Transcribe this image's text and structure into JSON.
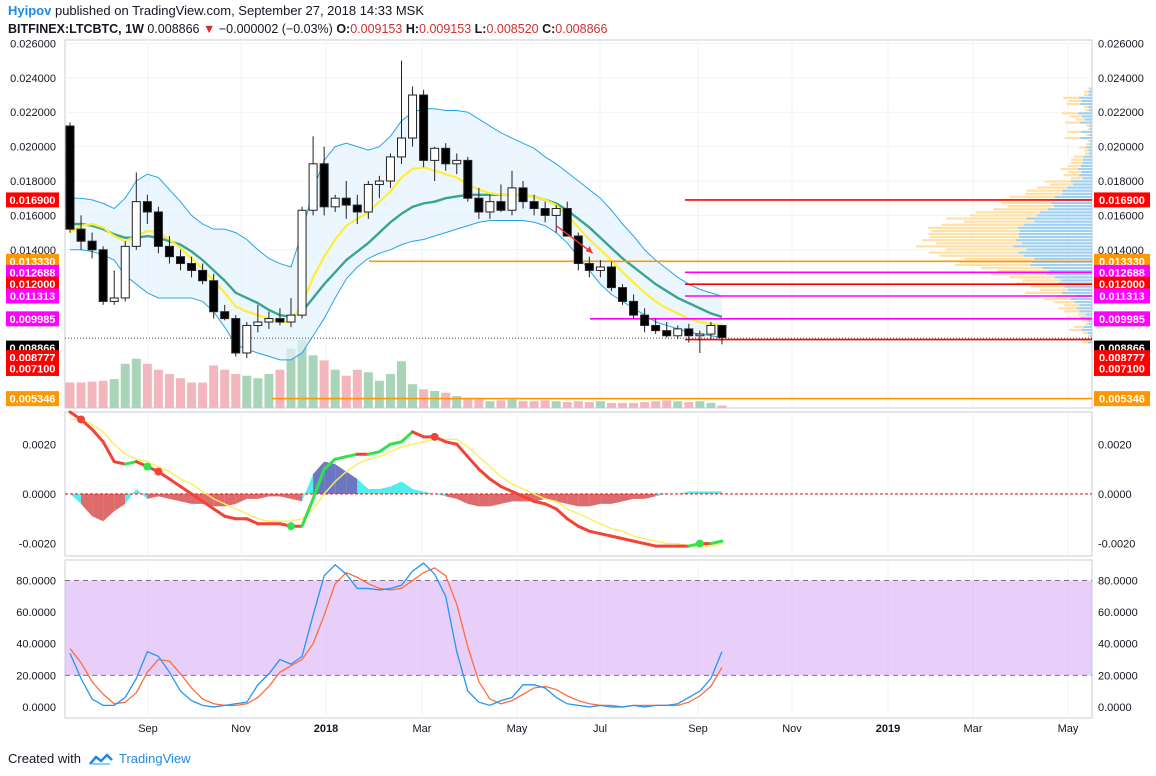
{
  "header": {
    "publisher": "Hyipov",
    "published_text": "published on TradingView.com, September 27, 2018 14:33 MSK",
    "symbol": "BITFINEX:LTCBTC, 1W",
    "last": "0.008866",
    "change": "−0.000002 (−0.03%)",
    "o_label": "O:",
    "o_value": "0.009153",
    "h_label": "H:",
    "h_value": "0.009153",
    "l_label": "L:",
    "l_value": "0.008520",
    "c_label": "C:",
    "c_value": "0.008866"
  },
  "footer": {
    "created_with": "Created with",
    "brand": "TradingView"
  },
  "colors": {
    "bull": "#ffffff",
    "bear": "#000000",
    "bb_band": "#29a3e6",
    "bb_fill": "#e3f2fd",
    "ma_fast": "#ffee33",
    "ma_slow": "#3aa58e",
    "vol_up": "#a8d5b8",
    "vol_down": "#f4b6bd",
    "macd_line": "#f44336",
    "macd_signal": "#ffee58",
    "stoch_k": "#2196f3",
    "stoch_d": "#ff6d3a",
    "rsi_band": "#e1bee7",
    "level_red": "#ff0000",
    "level_orange": "#ff9800",
    "level_magenta": "#ff00ff"
  },
  "chart_data": [
    {
      "type": "candlestick",
      "x_tick_labels": [
        "Sep",
        "Nov",
        "2018",
        "Mar",
        "May",
        "Jul",
        "Sep",
        "Nov",
        "2019",
        "Mar",
        "May"
      ],
      "y_tick_labels": [
        "0.026000",
        "0.024000",
        "0.022000",
        "0.020000",
        "0.018000",
        "0.016000",
        "0.014000"
      ],
      "ylim": [
        0.0048,
        0.0262
      ],
      "ohlc": [
        [
          0.0212,
          0.0214,
          0.015,
          0.0152
        ],
        [
          0.0152,
          0.016,
          0.014,
          0.0145
        ],
        [
          0.0145,
          0.015,
          0.0135,
          0.014
        ],
        [
          0.014,
          0.0142,
          0.0108,
          0.011
        ],
        [
          0.011,
          0.0128,
          0.0108,
          0.0112
        ],
        [
          0.0112,
          0.0145,
          0.011,
          0.0142
        ],
        [
          0.0142,
          0.0185,
          0.014,
          0.0168
        ],
        [
          0.0168,
          0.0172,
          0.0155,
          0.0162
        ],
        [
          0.0162,
          0.0165,
          0.0138,
          0.0142
        ],
        [
          0.0142,
          0.0148,
          0.0132,
          0.0136
        ],
        [
          0.0136,
          0.014,
          0.0128,
          0.0132
        ],
        [
          0.0132,
          0.0136,
          0.0124,
          0.0128
        ],
        [
          0.0128,
          0.0132,
          0.012,
          0.0122
        ],
        [
          0.0122,
          0.0126,
          0.01,
          0.0104
        ],
        [
          0.0104,
          0.0108,
          0.0099,
          0.01
        ],
        [
          0.01,
          0.0102,
          0.0078,
          0.008
        ],
        [
          0.008,
          0.0098,
          0.0077,
          0.0096
        ],
        [
          0.0096,
          0.0108,
          0.0092,
          0.0098
        ],
        [
          0.0098,
          0.0104,
          0.0094,
          0.01
        ],
        [
          0.01,
          0.0106,
          0.0096,
          0.0098
        ],
        [
          0.0098,
          0.0112,
          0.0095,
          0.0102
        ],
        [
          0.0102,
          0.0165,
          0.01,
          0.0163
        ],
        [
          0.0163,
          0.0206,
          0.016,
          0.019
        ],
        [
          0.019,
          0.02,
          0.016,
          0.0165
        ],
        [
          0.0165,
          0.0172,
          0.0162,
          0.017
        ],
        [
          0.017,
          0.018,
          0.0158,
          0.0166
        ],
        [
          0.0166,
          0.0172,
          0.0155,
          0.0162
        ],
        [
          0.0162,
          0.018,
          0.0158,
          0.0178
        ],
        [
          0.0178,
          0.0183,
          0.017,
          0.018
        ],
        [
          0.018,
          0.0196,
          0.0176,
          0.0194
        ],
        [
          0.0194,
          0.025,
          0.019,
          0.0205
        ],
        [
          0.0205,
          0.0235,
          0.02,
          0.023
        ],
        [
          0.023,
          0.0233,
          0.0188,
          0.0192
        ],
        [
          0.0192,
          0.02,
          0.018,
          0.0199
        ],
        [
          0.0199,
          0.0202,
          0.0186,
          0.019
        ],
        [
          0.019,
          0.0196,
          0.0184,
          0.0192
        ],
        [
          0.0192,
          0.0194,
          0.0168,
          0.017
        ],
        [
          0.017,
          0.0176,
          0.0158,
          0.0162
        ],
        [
          0.0162,
          0.0172,
          0.0158,
          0.0168
        ],
        [
          0.0168,
          0.0178,
          0.0162,
          0.0163
        ],
        [
          0.0163,
          0.0186,
          0.016,
          0.0176
        ],
        [
          0.0176,
          0.018,
          0.0164,
          0.0168
        ],
        [
          0.0168,
          0.0172,
          0.016,
          0.0164
        ],
        [
          0.0164,
          0.0168,
          0.0156,
          0.016
        ],
        [
          0.016,
          0.0166,
          0.015,
          0.0164
        ],
        [
          0.0164,
          0.0168,
          0.0148,
          0.0148
        ],
        [
          0.0148,
          0.015,
          0.0128,
          0.0132
        ],
        [
          0.0132,
          0.0136,
          0.0124,
          0.0128
        ],
        [
          0.0128,
          0.0134,
          0.0124,
          0.013
        ],
        [
          0.013,
          0.0133,
          0.0116,
          0.0118
        ],
        [
          0.0118,
          0.012,
          0.0108,
          0.011
        ],
        [
          0.011,
          0.0114,
          0.01,
          0.0102
        ],
        [
          0.0102,
          0.0106,
          0.0092,
          0.0096
        ],
        [
          0.0096,
          0.01,
          0.0091,
          0.0093
        ],
        [
          0.0093,
          0.0098,
          0.0089,
          0.009
        ],
        [
          0.009,
          0.0096,
          0.0088,
          0.0094
        ],
        [
          0.0094,
          0.0097,
          0.0086,
          0.009
        ],
        [
          0.009,
          0.0093,
          0.008,
          0.0091
        ],
        [
          0.0091,
          0.0098,
          0.0088,
          0.0096
        ],
        [
          0.0096,
          0.0096,
          0.0085,
          0.0089
        ]
      ],
      "bb_mid": [
        0.0155,
        0.0155,
        0.0154,
        0.0152,
        0.0149,
        0.0147,
        0.0147,
        0.0148,
        0.0147,
        0.0145,
        0.0143,
        0.0139,
        0.0134,
        0.0128,
        0.0122,
        0.0115,
        0.0112,
        0.0109,
        0.0105,
        0.0102,
        0.0101,
        0.0104,
        0.0112,
        0.012,
        0.0127,
        0.0134,
        0.0139,
        0.0144,
        0.015,
        0.0156,
        0.0161,
        0.0165,
        0.0167,
        0.0168,
        0.017,
        0.0171,
        0.0172,
        0.0172,
        0.0172,
        0.0172,
        0.0172,
        0.0172,
        0.0171,
        0.0169,
        0.0167,
        0.0163,
        0.0158,
        0.0153,
        0.0147,
        0.0141,
        0.0135,
        0.013,
        0.0125,
        0.012,
        0.0116,
        0.0112,
        0.0109,
        0.0106,
        0.0103,
        0.0101
      ],
      "bb_upper": [
        0.017,
        0.017,
        0.0169,
        0.0167,
        0.0164,
        0.017,
        0.018,
        0.0184,
        0.0182,
        0.0175,
        0.0168,
        0.016,
        0.0155,
        0.0152,
        0.0152,
        0.015,
        0.0146,
        0.014,
        0.0135,
        0.0132,
        0.013,
        0.015,
        0.0175,
        0.0192,
        0.02,
        0.0202,
        0.02,
        0.0198,
        0.02,
        0.0206,
        0.0215,
        0.022,
        0.0222,
        0.0222,
        0.0221,
        0.0221,
        0.022,
        0.0216,
        0.0212,
        0.0208,
        0.0205,
        0.0202,
        0.0199,
        0.0194,
        0.019,
        0.0185,
        0.018,
        0.0175,
        0.017,
        0.0163,
        0.0155,
        0.0148,
        0.014,
        0.0134,
        0.0129,
        0.0124,
        0.012,
        0.0117,
        0.0115,
        0.0113
      ],
      "bb_lower": [
        0.014,
        0.014,
        0.0139,
        0.0137,
        0.0134,
        0.0125,
        0.012,
        0.0115,
        0.0112,
        0.0112,
        0.0112,
        0.0112,
        0.011,
        0.0104,
        0.0095,
        0.0085,
        0.0082,
        0.008,
        0.0078,
        0.0076,
        0.0076,
        0.008,
        0.009,
        0.01,
        0.0112,
        0.0123,
        0.013,
        0.0135,
        0.0138,
        0.014,
        0.0143,
        0.0145,
        0.0146,
        0.0148,
        0.015,
        0.0152,
        0.0154,
        0.0156,
        0.0157,
        0.0157,
        0.0157,
        0.0157,
        0.0156,
        0.0154,
        0.015,
        0.0144,
        0.0136,
        0.0128,
        0.012,
        0.0114,
        0.011,
        0.0106,
        0.0102,
        0.0098,
        0.0096,
        0.0094,
        0.0092,
        0.0091,
        0.009,
        0.0089
      ],
      "ma_fast": [
        0.015,
        0.0154,
        0.0155,
        0.0153,
        0.0148,
        0.0145,
        0.0148,
        0.0151,
        0.015,
        0.0146,
        0.0141,
        0.0135,
        0.0129,
        0.0122,
        0.0115,
        0.0107,
        0.0104,
        0.0102,
        0.01,
        0.0098,
        0.0098,
        0.0108,
        0.0124,
        0.0136,
        0.0146,
        0.0154,
        0.0158,
        0.0162,
        0.0168,
        0.0174,
        0.0182,
        0.0187,
        0.0188,
        0.0186,
        0.0184,
        0.0182,
        0.0178,
        0.0175,
        0.0173,
        0.0172,
        0.0172,
        0.0172,
        0.0171,
        0.0169,
        0.0166,
        0.016,
        0.0153,
        0.0146,
        0.014,
        0.0134,
        0.0127,
        0.0121,
        0.0115,
        0.011,
        0.0106,
        0.0103,
        0.01,
        0.0098,
        0.0097,
        0.0096
      ],
      "ma_slow": [
        0.0142,
        0.0144,
        0.0145,
        0.0144,
        0.0142,
        0.014,
        0.014,
        0.0141,
        0.0141,
        0.014,
        0.0138,
        0.0135,
        0.0131,
        0.0127,
        0.0122,
        0.0117,
        0.0114,
        0.0112,
        0.011,
        0.0108,
        0.0107,
        0.011,
        0.0116,
        0.0122,
        0.0128,
        0.0133,
        0.0137,
        0.0141,
        0.0146,
        0.0152,
        0.0158,
        0.0162,
        0.0165,
        0.0166,
        0.0167,
        0.0168,
        0.0168,
        0.0168,
        0.0168,
        0.0168,
        0.0168,
        0.0168,
        0.0167,
        0.0165,
        0.0163,
        0.016,
        0.0155,
        0.015,
        0.0145,
        0.014,
        0.0135,
        0.013,
        0.0125,
        0.0121,
        0.0117,
        0.0113,
        0.011,
        0.0107,
        0.0105,
        0.0103
      ],
      "volume": [
        30,
        30,
        31,
        32,
        34,
        52,
        58,
        52,
        45,
        40,
        35,
        30,
        30,
        50,
        45,
        40,
        38,
        35,
        40,
        45,
        70,
        80,
        62,
        56,
        45,
        38,
        45,
        42,
        32,
        40,
        55,
        28,
        22,
        20,
        18,
        14,
        12,
        10,
        8,
        9,
        10,
        8,
        8,
        9,
        8,
        7,
        8,
        7,
        8,
        6,
        6,
        6,
        7,
        8,
        9,
        8,
        7,
        8,
        6,
        3
      ],
      "horizontal_levels": [
        {
          "value": 0.0169,
          "label": "0.016900",
          "color": "#ff0000"
        },
        {
          "value": 0.01333,
          "label": "0.013330",
          "color": "#ff9800"
        },
        {
          "value": 0.012688,
          "label": "0.012688",
          "color": "#ff00ff"
        },
        {
          "value": 0.012,
          "label": "0.012000",
          "color": "#ff0000"
        },
        {
          "value": 0.011313,
          "label": "0.011313",
          "color": "#ff00ff"
        },
        {
          "value": 0.009985,
          "label": "0.009985",
          "color": "#ff00ff"
        },
        {
          "value": 0.008866,
          "label": "0.008866",
          "color": "#000000"
        },
        {
          "value": 0.008777,
          "label": "0.008777",
          "color": "#ff0000"
        },
        {
          "value": 0.0071,
          "label": "0.007100",
          "color": "#ff0000"
        },
        {
          "value": 0.005346,
          "label": "0.005346",
          "color": "#ff9800"
        }
      ]
    },
    {
      "type": "line",
      "y_tick_labels": [
        "0.0020",
        "0.0000",
        "-0.0020"
      ],
      "ylim": [
        -0.0025,
        0.0033
      ],
      "macd": [
        0.0033,
        0.003,
        0.0026,
        0.0021,
        0.0013,
        0.0012,
        0.0013,
        0.0011,
        0.0009,
        0.0006,
        0.0003,
        0.0,
        -0.0003,
        -0.0006,
        -0.0009,
        -0.001,
        -0.001,
        -0.0012,
        -0.0012,
        -0.0012,
        -0.0013,
        -0.0013,
        -0.0002,
        0.001,
        0.0014,
        0.0015,
        0.0016,
        0.0016,
        0.0017,
        0.002,
        0.0021,
        0.0025,
        0.0023,
        0.0023,
        0.0021,
        0.002,
        0.0015,
        0.001,
        0.0006,
        0.0003,
        0.0001,
        -0.0001,
        -0.0003,
        -0.0004,
        -0.0006,
        -0.001,
        -0.0013,
        -0.0015,
        -0.0016,
        -0.0017,
        -0.0018,
        -0.0019,
        -0.002,
        -0.0021,
        -0.0021,
        -0.0021,
        -0.0021,
        -0.002,
        -0.002,
        -0.0019
      ],
      "signal": [
        0.003,
        0.003,
        0.0028,
        0.0025,
        0.002,
        0.0016,
        0.0014,
        0.0013,
        0.0011,
        0.0009,
        0.0006,
        0.0004,
        0.0001,
        -0.0002,
        -0.0004,
        -0.0006,
        -0.0008,
        -0.001,
        -0.0011,
        -0.0011,
        -0.0011,
        -0.001,
        -0.0006,
        0.0,
        0.0005,
        0.0009,
        0.0012,
        0.0014,
        0.0015,
        0.0017,
        0.0019,
        0.002,
        0.0021,
        0.0022,
        0.0022,
        0.0022,
        0.0019,
        0.0015,
        0.0011,
        0.0007,
        0.0004,
        0.0002,
        0.0,
        -0.0002,
        -0.0003,
        -0.0006,
        -0.0008,
        -0.001,
        -0.0012,
        -0.0014,
        -0.0015,
        -0.0017,
        -0.0018,
        -0.0019,
        -0.002,
        -0.002,
        -0.0021,
        -0.0021,
        -0.0021,
        -0.002
      ],
      "histogram": [
        0.0,
        -0.0004,
        -0.0009,
        -0.0011,
        -0.0007,
        -0.0004,
        0.0002,
        -0.0002,
        -0.0001,
        -0.0002,
        -0.0003,
        -0.0004,
        -0.0004,
        -0.0005,
        -0.0005,
        -0.0004,
        -0.0002,
        -0.0002,
        -0.0001,
        -0.0001,
        -0.0002,
        -0.0003,
        0.0008,
        0.0013,
        0.0012,
        0.0009,
        0.0006,
        0.0002,
        0.0002,
        0.0003,
        0.0005,
        0.0002,
        0.0001,
        0.0,
        -0.0001,
        -0.0002,
        -0.0004,
        -0.0005,
        -0.0005,
        -0.0004,
        -0.0003,
        -0.0003,
        -0.0003,
        -0.0002,
        -0.0003,
        -0.0004,
        -0.0005,
        -0.0005,
        -0.0004,
        -0.0004,
        -0.0003,
        -0.0002,
        -0.0002,
        -0.0001,
        0.0,
        0.0,
        0.0001,
        0.0001,
        0.0001,
        0.0001
      ]
    },
    {
      "type": "line",
      "y_tick_labels": [
        "80.0000",
        "60.0000",
        "40.0000",
        "20.0000",
        "0.0000"
      ],
      "ylim": [
        -7,
        93
      ],
      "band": [
        20,
        80
      ],
      "k": [
        34,
        18,
        5,
        1,
        1,
        6,
        18,
        35,
        32,
        22,
        10,
        4,
        1,
        0,
        1,
        2,
        3,
        14,
        21,
        30,
        27,
        32,
        58,
        83,
        90,
        84,
        75,
        75,
        74,
        75,
        77,
        86,
        91,
        84,
        70,
        35,
        10,
        3,
        1,
        4,
        6,
        14,
        14,
        12,
        6,
        2,
        1,
        0,
        1,
        0,
        0,
        1,
        0,
        1,
        1,
        2,
        6,
        10,
        18,
        35
      ],
      "d": [
        37,
        28,
        16,
        8,
        2,
        3,
        9,
        22,
        30,
        29,
        21,
        12,
        5,
        2,
        1,
        1,
        2,
        6,
        13,
        22,
        26,
        30,
        40,
        58,
        78,
        85,
        82,
        78,
        75,
        74,
        75,
        80,
        85,
        88,
        83,
        65,
        38,
        16,
        5,
        2,
        4,
        8,
        12,
        13,
        11,
        7,
        4,
        2,
        1,
        1,
        0,
        1,
        1,
        1,
        1,
        1,
        3,
        7,
        13,
        25
      ]
    }
  ]
}
